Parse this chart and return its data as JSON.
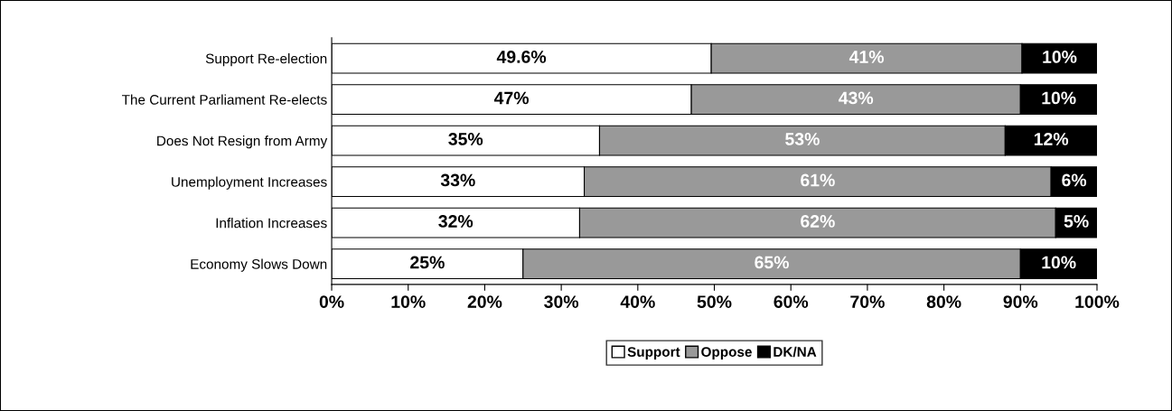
{
  "chart_data": {
    "type": "bar",
    "orientation": "horizontal",
    "stacked": true,
    "categories": [
      "Support Re-election",
      "The Current Parliament Re-elects",
      "Does Not Resign from Army",
      "Unemployment Increases",
      "Inflation Increases",
      "Economy Slows Down"
    ],
    "series": [
      {
        "name": "Support",
        "color": "#ffffff",
        "values": [
          49.6,
          47,
          35,
          33,
          32.4,
          25
        ],
        "value_labels": [
          "49.6%",
          "47%",
          "35%",
          "33%",
          "32%",
          "25%"
        ]
      },
      {
        "name": "Oppose",
        "color": "#999999",
        "values": [
          40.6,
          43,
          53,
          61,
          62.2,
          65
        ],
        "value_labels": [
          "41%",
          "43%",
          "53%",
          "61%",
          "62%",
          "65%"
        ]
      },
      {
        "name": "DK/NA",
        "color": "#000000",
        "values": [
          9.8,
          10,
          12,
          6,
          5.4,
          10
        ],
        "value_labels": [
          "10%",
          "10%",
          "12%",
          "6%",
          "5%",
          "10%"
        ]
      }
    ],
    "xlim": [
      0,
      100
    ],
    "xticks": [
      {
        "value": 0,
        "label": "0%"
      },
      {
        "value": 10,
        "label": "10%"
      },
      {
        "value": 20,
        "label": "20%"
      },
      {
        "value": 30,
        "label": "30%"
      },
      {
        "value": 40,
        "label": "40%"
      },
      {
        "value": 50,
        "label": "50%"
      },
      {
        "value": 60,
        "label": "60%"
      },
      {
        "value": 70,
        "label": "70%"
      },
      {
        "value": 80,
        "label": "80%"
      },
      {
        "value": 90,
        "label": "90%"
      },
      {
        "value": 100,
        "label": "100%"
      }
    ],
    "grid": false,
    "legend": "bottom"
  }
}
